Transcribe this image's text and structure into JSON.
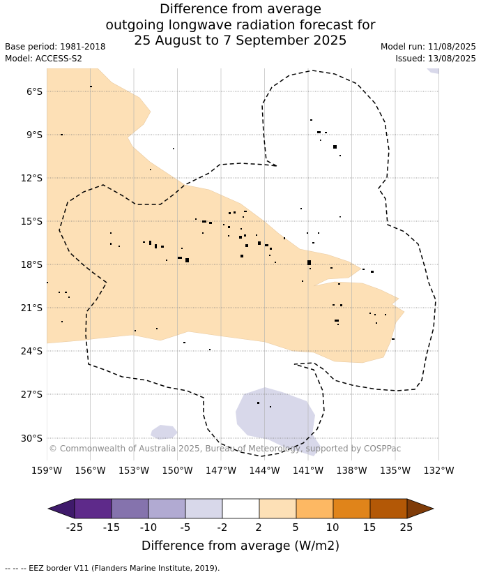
{
  "title": {
    "line1": "Difference from average",
    "line2": "outgoing longwave radiation forecast for",
    "line3": "25 August to 7 September 2025"
  },
  "meta": {
    "base_period": "Base period: 1981-2018",
    "model": "Model: ACCESS-S2",
    "model_run": "Model run: 11/08/2025",
    "issued": "Issued: 13/08/2025"
  },
  "map": {
    "lat_labels": [
      "6°S",
      "9°S",
      "12°S",
      "15°S",
      "18°S",
      "21°S",
      "24°S",
      "27°S",
      "30°S"
    ],
    "lon_labels": [
      "159°W",
      "156°W",
      "153°W",
      "150°W",
      "147°W",
      "144°W",
      "141°W",
      "138°W",
      "135°W",
      "132°W"
    ],
    "copyright": "© Commonwealth of Australia 2025, Bureau of Meteorology, supported by COSPPac"
  },
  "colorbar": {
    "ticks": [
      "-25",
      "-15",
      "-10",
      "-5",
      "-2",
      "2",
      "5",
      "10",
      "15",
      "25"
    ],
    "colors": [
      "#3f1a6b",
      "#5e2a8a",
      "#8573ad",
      "#b1aad2",
      "#d8d8ea",
      "#ffffff",
      "#fde0b6",
      "#fdb863",
      "#e0841a",
      "#b35806",
      "#7f3b08"
    ],
    "label": "Difference from average (W/m2)"
  },
  "footer": "-- -- -- EEZ border V11 (Flanders Marine Institute, 2019)."
}
